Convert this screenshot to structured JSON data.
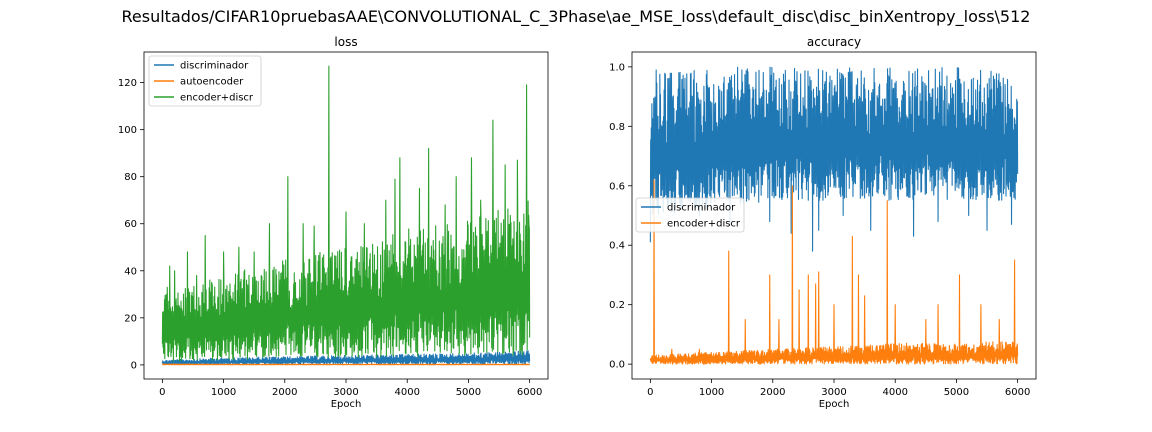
{
  "figure": {
    "suptitle": "Resultados/CIFAR10pruebasAAE\\CONVOLUTIONAL_C_3Phase\\ae_MSE_loss\\default_disc\\disc_binXentropy_loss\\512"
  },
  "chart_data": [
    {
      "type": "line",
      "title": "loss",
      "xlabel": "Epoch",
      "ylabel": "",
      "xlim": [
        -300,
        6300
      ],
      "ylim": [
        -6,
        133
      ],
      "xticks": [
        0,
        1000,
        2000,
        3000,
        4000,
        5000,
        6000
      ],
      "yticks": [
        0,
        20,
        40,
        60,
        80,
        100,
        120
      ],
      "x_tick_labels": [
        "0",
        "1000",
        "2000",
        "3000",
        "4000",
        "5000",
        "6000"
      ],
      "y_tick_labels": [
        "0",
        "20",
        "40",
        "60",
        "80",
        "100",
        "120"
      ],
      "legend": "upper-left",
      "grid": false,
      "series": [
        {
          "name": "discriminador",
          "color": "#1f77b4",
          "x_range": [
            0,
            6000
          ],
          "low": [
            0.2,
            0.2,
            0.3,
            0.3,
            0.3,
            0.3,
            0.3
          ],
          "high": [
            2,
            3,
            3.5,
            4,
            4.5,
            5,
            6
          ]
        },
        {
          "name": "autoencoder",
          "color": "#ff7f0e",
          "x_range": [
            0,
            6000
          ],
          "low": [
            0.05,
            0.05,
            0.05,
            0.05,
            0.05,
            0.05,
            0.05
          ],
          "high": [
            0.4,
            0.3,
            0.3,
            0.3,
            0.3,
            0.3,
            0.3
          ]
        },
        {
          "name": "encoder+discr",
          "color": "#2ca02c",
          "x_range": [
            0,
            6000
          ],
          "low": [
            1,
            2,
            3,
            3,
            4,
            4,
            4
          ],
          "high": [
            30,
            38,
            45,
            50,
            58,
            62,
            70
          ],
          "spikes": [
            [
              20,
              5
            ],
            [
              50,
              17
            ],
            [
              80,
              33
            ],
            [
              120,
              42
            ],
            [
              200,
              40
            ],
            [
              410,
              48
            ],
            [
              560,
              38
            ],
            [
              700,
              55
            ],
            [
              1000,
              48
            ],
            [
              1250,
              50
            ],
            [
              1500,
              48
            ],
            [
              1750,
              60
            ],
            [
              2050,
              80
            ],
            [
              2300,
              60
            ],
            [
              2480,
              59
            ],
            [
              2720,
              127
            ],
            [
              3000,
              65
            ],
            [
              3300,
              60
            ],
            [
              3650,
              70
            ],
            [
              3800,
              79
            ],
            [
              3880,
              88
            ],
            [
              4200,
              75
            ],
            [
              4350,
              92
            ],
            [
              4620,
              68
            ],
            [
              4800,
              80
            ],
            [
              5050,
              88
            ],
            [
              5200,
              70
            ],
            [
              5400,
              104
            ],
            [
              5600,
              85
            ],
            [
              5800,
              87
            ],
            [
              5950,
              119
            ],
            [
              5990,
              59
            ]
          ]
        }
      ]
    },
    {
      "type": "line",
      "title": "accuracy",
      "xlabel": "Epoch",
      "ylabel": "",
      "xlim": [
        -300,
        6300
      ],
      "ylim": [
        -0.05,
        1.05
      ],
      "xticks": [
        0,
        1000,
        2000,
        3000,
        4000,
        5000,
        6000
      ],
      "yticks": [
        0.0,
        0.2,
        0.4,
        0.6,
        0.8,
        1.0
      ],
      "x_tick_labels": [
        "0",
        "1000",
        "2000",
        "3000",
        "4000",
        "5000",
        "6000"
      ],
      "y_tick_labels": [
        "0.0",
        "0.2",
        "0.4",
        "0.6",
        "0.8",
        "1.0"
      ],
      "legend": "center-left",
      "grid": false,
      "series": [
        {
          "name": "discriminador",
          "color": "#1f77b4",
          "x_range": [
            0,
            6000
          ],
          "low": [
            0.5,
            0.52,
            0.55,
            0.55,
            0.55,
            0.55,
            0.55
          ],
          "high": [
            1.0,
            1.0,
            1.0,
            1.0,
            1.0,
            1.0,
            0.98
          ],
          "dips": [
            [
              0,
              0.41
            ],
            [
              30,
              0.65
            ],
            [
              120,
              0.6
            ],
            [
              500,
              0.52
            ],
            [
              800,
              0.5
            ],
            [
              1300,
              0.47
            ],
            [
              1950,
              0.48
            ],
            [
              2300,
              0.44
            ],
            [
              2650,
              0.38
            ],
            [
              2750,
              0.45
            ],
            [
              3150,
              0.5
            ],
            [
              3600,
              0.45
            ],
            [
              4300,
              0.43
            ],
            [
              4700,
              0.48
            ],
            [
              5200,
              0.5
            ],
            [
              5500,
              0.45
            ],
            [
              5900,
              0.47
            ]
          ]
        },
        {
          "name": "encoder+discr",
          "color": "#ff7f0e",
          "x_range": [
            0,
            6000
          ],
          "low": [
            0.0,
            0.0,
            0.0,
            0.0,
            0.0,
            0.0,
            0.0
          ],
          "high": [
            0.03,
            0.04,
            0.05,
            0.06,
            0.07,
            0.07,
            0.08
          ],
          "spikes": [
            [
              0,
              0.02
            ],
            [
              60,
              0.62
            ],
            [
              110,
              0.02
            ],
            [
              350,
              0.05
            ],
            [
              800,
              0.05
            ],
            [
              1280,
              0.38
            ],
            [
              1550,
              0.15
            ],
            [
              1950,
              0.3
            ],
            [
              2100,
              0.15
            ],
            [
              2320,
              0.6
            ],
            [
              2430,
              0.25
            ],
            [
              2580,
              0.3
            ],
            [
              2700,
              0.27
            ],
            [
              2750,
              0.31
            ],
            [
              3000,
              0.2
            ],
            [
              3300,
              0.43
            ],
            [
              3400,
              0.3
            ],
            [
              3500,
              0.23
            ],
            [
              3870,
              0.55
            ],
            [
              4000,
              0.2
            ],
            [
              4500,
              0.15
            ],
            [
              4700,
              0.2
            ],
            [
              5050,
              0.3
            ],
            [
              5400,
              0.2
            ],
            [
              5700,
              0.15
            ],
            [
              5950,
              0.35
            ]
          ]
        }
      ]
    }
  ]
}
